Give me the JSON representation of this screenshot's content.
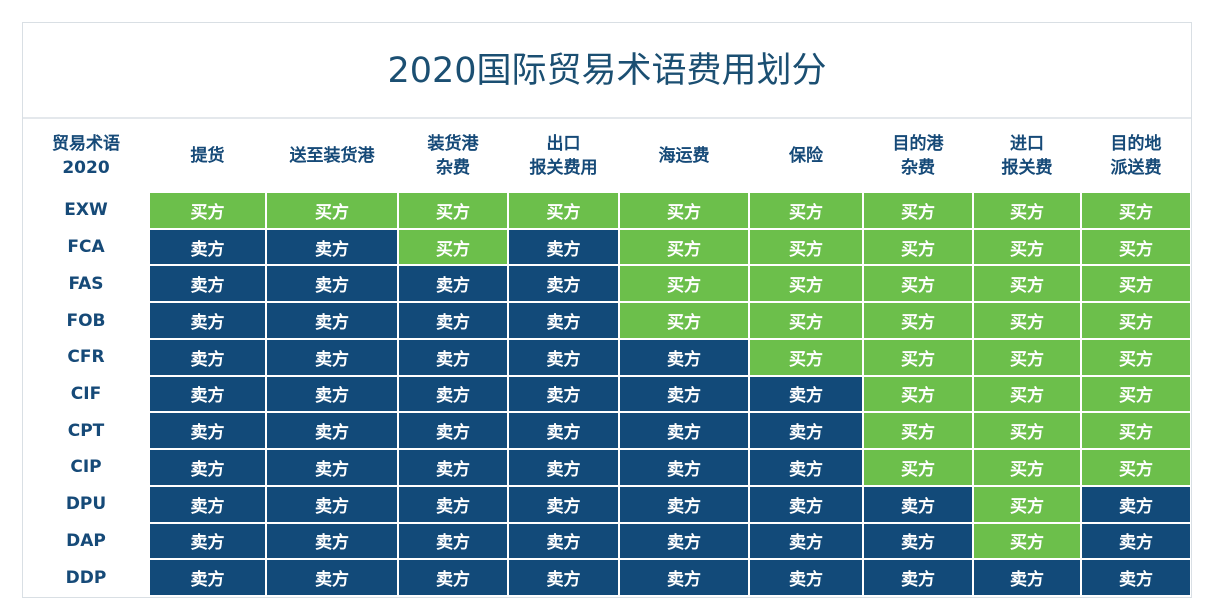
{
  "table": {
    "title": "2020国际贸易术语费用划分",
    "headers": [
      [
        "贸易术语",
        "2020"
      ],
      [
        "提货"
      ],
      [
        "送至装货港"
      ],
      [
        "装货港",
        "杂费"
      ],
      [
        "出口",
        "报关费用"
      ],
      [
        "海运费"
      ],
      [
        "保险"
      ],
      [
        "目的港",
        "杂费"
      ],
      [
        "进口",
        "报关费"
      ],
      [
        "目的地",
        "派送费"
      ]
    ],
    "rows": [
      {
        "term": "EXW",
        "cells": [
          "买方",
          "买方",
          "买方",
          "买方",
          "买方",
          "买方",
          "买方",
          "买方",
          "买方"
        ]
      },
      {
        "term": "FCA",
        "cells": [
          "卖方",
          "卖方",
          "买方",
          "卖方",
          "买方",
          "买方",
          "买方",
          "买方",
          "买方"
        ]
      },
      {
        "term": "FAS",
        "cells": [
          "卖方",
          "卖方",
          "卖方",
          "卖方",
          "买方",
          "买方",
          "买方",
          "买方",
          "买方"
        ]
      },
      {
        "term": "FOB",
        "cells": [
          "卖方",
          "卖方",
          "卖方",
          "卖方",
          "买方",
          "买方",
          "买方",
          "买方",
          "买方"
        ]
      },
      {
        "term": "CFR",
        "cells": [
          "卖方",
          "卖方",
          "卖方",
          "卖方",
          "卖方",
          "买方",
          "买方",
          "买方",
          "买方"
        ]
      },
      {
        "term": "CIF",
        "cells": [
          "卖方",
          "卖方",
          "卖方",
          "卖方",
          "卖方",
          "卖方",
          "买方",
          "买方",
          "买方"
        ]
      },
      {
        "term": "CPT",
        "cells": [
          "卖方",
          "卖方",
          "卖方",
          "卖方",
          "卖方",
          "卖方",
          "买方",
          "买方",
          "买方"
        ]
      },
      {
        "term": "CIP",
        "cells": [
          "卖方",
          "卖方",
          "卖方",
          "卖方",
          "卖方",
          "卖方",
          "买方",
          "买方",
          "买方"
        ]
      },
      {
        "term": "DPU",
        "cells": [
          "卖方",
          "卖方",
          "卖方",
          "卖方",
          "卖方",
          "卖方",
          "卖方",
          "买方",
          "卖方"
        ]
      },
      {
        "term": "DAP",
        "cells": [
          "卖方",
          "卖方",
          "卖方",
          "卖方",
          "卖方",
          "卖方",
          "卖方",
          "买方",
          "卖方"
        ]
      },
      {
        "term": "DDP",
        "cells": [
          "卖方",
          "卖方",
          "卖方",
          "卖方",
          "卖方",
          "卖方",
          "卖方",
          "卖方",
          "卖方"
        ]
      }
    ]
  }
}
